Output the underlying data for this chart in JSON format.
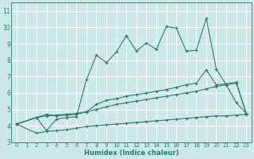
{
  "xlabel": "Humidex (Indice chaleur)",
  "xlim": [
    -0.5,
    23.5
  ],
  "ylim": [
    3,
    11.5
  ],
  "yticks": [
    3,
    4,
    5,
    6,
    7,
    8,
    9,
    10,
    11
  ],
  "xticks": [
    0,
    1,
    2,
    3,
    4,
    5,
    6,
    7,
    8,
    9,
    10,
    11,
    12,
    13,
    14,
    15,
    16,
    17,
    18,
    19,
    20,
    21,
    22,
    23
  ],
  "background_color": "#cde8e8",
  "grid_color": "#ffffff",
  "line_color": "#2a7d6e",
  "lines": [
    {
      "x": [
        0,
        2,
        3,
        4,
        5,
        6,
        7,
        8,
        9,
        10,
        11,
        12,
        13,
        14,
        15,
        16,
        17,
        18,
        19,
        20,
        21,
        22,
        23
      ],
      "y": [
        4.1,
        3.55,
        3.65,
        3.7,
        3.75,
        3.85,
        3.95,
        4.0,
        4.05,
        4.1,
        4.15,
        4.2,
        4.25,
        4.3,
        4.35,
        4.4,
        4.45,
        4.5,
        4.55,
        4.6,
        4.6,
        4.65,
        4.7
      ]
    },
    {
      "x": [
        0,
        2,
        3,
        4,
        5,
        6,
        7,
        8,
        9,
        10,
        11,
        12,
        13,
        14,
        15,
        16,
        17,
        18,
        19,
        20,
        21,
        22,
        23
      ],
      "y": [
        4.1,
        4.5,
        4.6,
        4.65,
        4.7,
        4.75,
        4.85,
        5.0,
        5.15,
        5.3,
        5.4,
        5.5,
        5.6,
        5.7,
        5.8,
        5.9,
        6.0,
        6.1,
        6.25,
        6.4,
        6.5,
        6.6,
        4.75
      ]
    },
    {
      "x": [
        0,
        2,
        3,
        4,
        5,
        6,
        7,
        8,
        9,
        10,
        11,
        12,
        13,
        14,
        15,
        16,
        17,
        18,
        19,
        20,
        21,
        22,
        23
      ],
      "y": [
        4.1,
        4.5,
        4.7,
        4.6,
        4.65,
        4.7,
        4.85,
        5.3,
        5.55,
        5.65,
        5.8,
        5.9,
        6.0,
        6.1,
        6.2,
        6.35,
        6.5,
        6.6,
        7.4,
        6.5,
        6.55,
        6.65,
        4.75
      ]
    },
    {
      "x": [
        0,
        2,
        3,
        4,
        5,
        6,
        7,
        8,
        9,
        10,
        11,
        12,
        13,
        14,
        15,
        16,
        17,
        18,
        19,
        20,
        21,
        22,
        23
      ],
      "y": [
        4.1,
        4.5,
        3.7,
        4.4,
        4.5,
        4.55,
        6.8,
        8.3,
        7.85,
        8.5,
        9.5,
        8.55,
        9.05,
        8.65,
        10.05,
        9.95,
        8.55,
        8.6,
        10.55,
        7.45,
        6.5,
        5.4,
        4.75
      ]
    }
  ]
}
